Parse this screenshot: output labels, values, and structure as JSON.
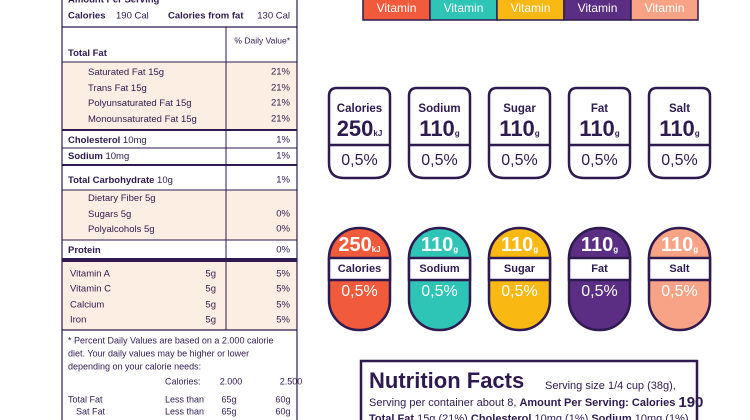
{
  "label": {
    "header": "Amount Per Serving",
    "calories_label": "Calories",
    "calories": "190 Cal",
    "from_fat_label": "Calories from fat",
    "from_fat": "130 Cal",
    "dv_header": "% Daily Value*",
    "rows": [
      {
        "name": "Total Fat",
        "bold": true
      },
      {
        "name": "Saturated Fat 15g",
        "dv": "21%",
        "indent": true
      },
      {
        "name": "Trans Fat 15g",
        "dv": "21%",
        "indent": true
      },
      {
        "name": "Polyunsaturated Fat 15g",
        "dv": "21%",
        "indent": true
      },
      {
        "name": "Monounsaturated Fat 15g",
        "dv": "21%",
        "indent": true
      },
      {
        "name": "Cholesterol",
        "amount": "10mg",
        "dv": "1%",
        "bold": true
      },
      {
        "name": "Sodium",
        "amount": "10mg",
        "dv": "1%",
        "bold": true
      },
      {
        "name": "Total Carbohydrate",
        "amount": "10g",
        "dv": "1%",
        "bold": true
      },
      {
        "name": "Dietary Fiber 5g",
        "indent": true
      },
      {
        "name": "Sugars 5g",
        "dv": "0%",
        "indent": true
      },
      {
        "name": "Polyalcohols 5g",
        "dv": "0%",
        "indent": true
      },
      {
        "name": "Protein",
        "dv": "0%",
        "bold": true
      }
    ],
    "vitamins": [
      {
        "name": "Vitamin   A",
        "amount": "5g",
        "dv": "5%"
      },
      {
        "name": "Vitamin C",
        "amount": "5g",
        "dv": "5%"
      },
      {
        "name": "Calcium",
        "amount": "5g",
        "dv": "5%"
      },
      {
        "name": "Iron",
        "amount": "5g",
        "dv": "5%"
      }
    ],
    "footnote": [
      "* Percent Daily Values are based on a 2.000 calorie",
      "diet. Your daily values may be higher or lower",
      "depending on your calorie needs:"
    ],
    "calorie_table": {
      "header": [
        "Calories:",
        "2.000",
        "2.500"
      ],
      "rows": [
        [
          "Total Fat",
          "Less than",
          "65g",
          "60g"
        ],
        [
          "Sat Fat",
          "Less than",
          "65g",
          "60g"
        ]
      ]
    }
  },
  "tabs": [
    {
      "text": "Vitamin",
      "color": "#f15a3a"
    },
    {
      "text": "Vitamin",
      "color": "#2ec4b6"
    },
    {
      "text": "Vitamin",
      "color": "#f9b812"
    },
    {
      "text": "Vitamin",
      "color": "#5b2d83"
    },
    {
      "text": "Vitamin",
      "color": "#f8a385"
    }
  ],
  "cards": [
    {
      "name": "Calories",
      "value": "250",
      "unit": "kJ",
      "pct": "0,5%"
    },
    {
      "name": "Sodium",
      "value": "110",
      "unit": "g",
      "pct": "0,5%"
    },
    {
      "name": "Sugar",
      "value": "110",
      "unit": "g",
      "pct": "0,5%"
    },
    {
      "name": "Fat",
      "value": "110",
      "unit": "g",
      "pct": "0,5%"
    },
    {
      "name": "Salt",
      "value": "110",
      "unit": "g",
      "pct": "0,5%"
    }
  ],
  "badges": [
    {
      "name": "Calories",
      "value": "250",
      "unit": "kJ",
      "pct": "0,5%",
      "color": "#f15a3a"
    },
    {
      "name": "Sodium",
      "value": "110",
      "unit": "g",
      "pct": "0,5%",
      "color": "#2ec4b6"
    },
    {
      "name": "Sugar",
      "value": "110",
      "unit": "g",
      "pct": "0,5%",
      "color": "#f9b812"
    },
    {
      "name": "Fat",
      "value": "110",
      "unit": "g",
      "pct": "0,5%",
      "color": "#5b2d83"
    },
    {
      "name": "Salt",
      "value": "110",
      "unit": "g",
      "pct": "0,5%",
      "color": "#f8a385"
    }
  ],
  "facts": {
    "title": "Nutrition Facts",
    "serving": "Serving size 1/4 cup (38g),",
    "line2": "Serving per container about 8, ",
    "line2_bold": "Amount Per Serving: Calories ",
    "line2_big": "190",
    "line3": [
      {
        "b": "Total Fat",
        "t": " 15g (21%) "
      },
      {
        "b": "Cholesterol",
        "t": " 10mg (1%) "
      },
      {
        "b": "Sodium",
        "t": " 10mg (1%)"
      }
    ]
  }
}
